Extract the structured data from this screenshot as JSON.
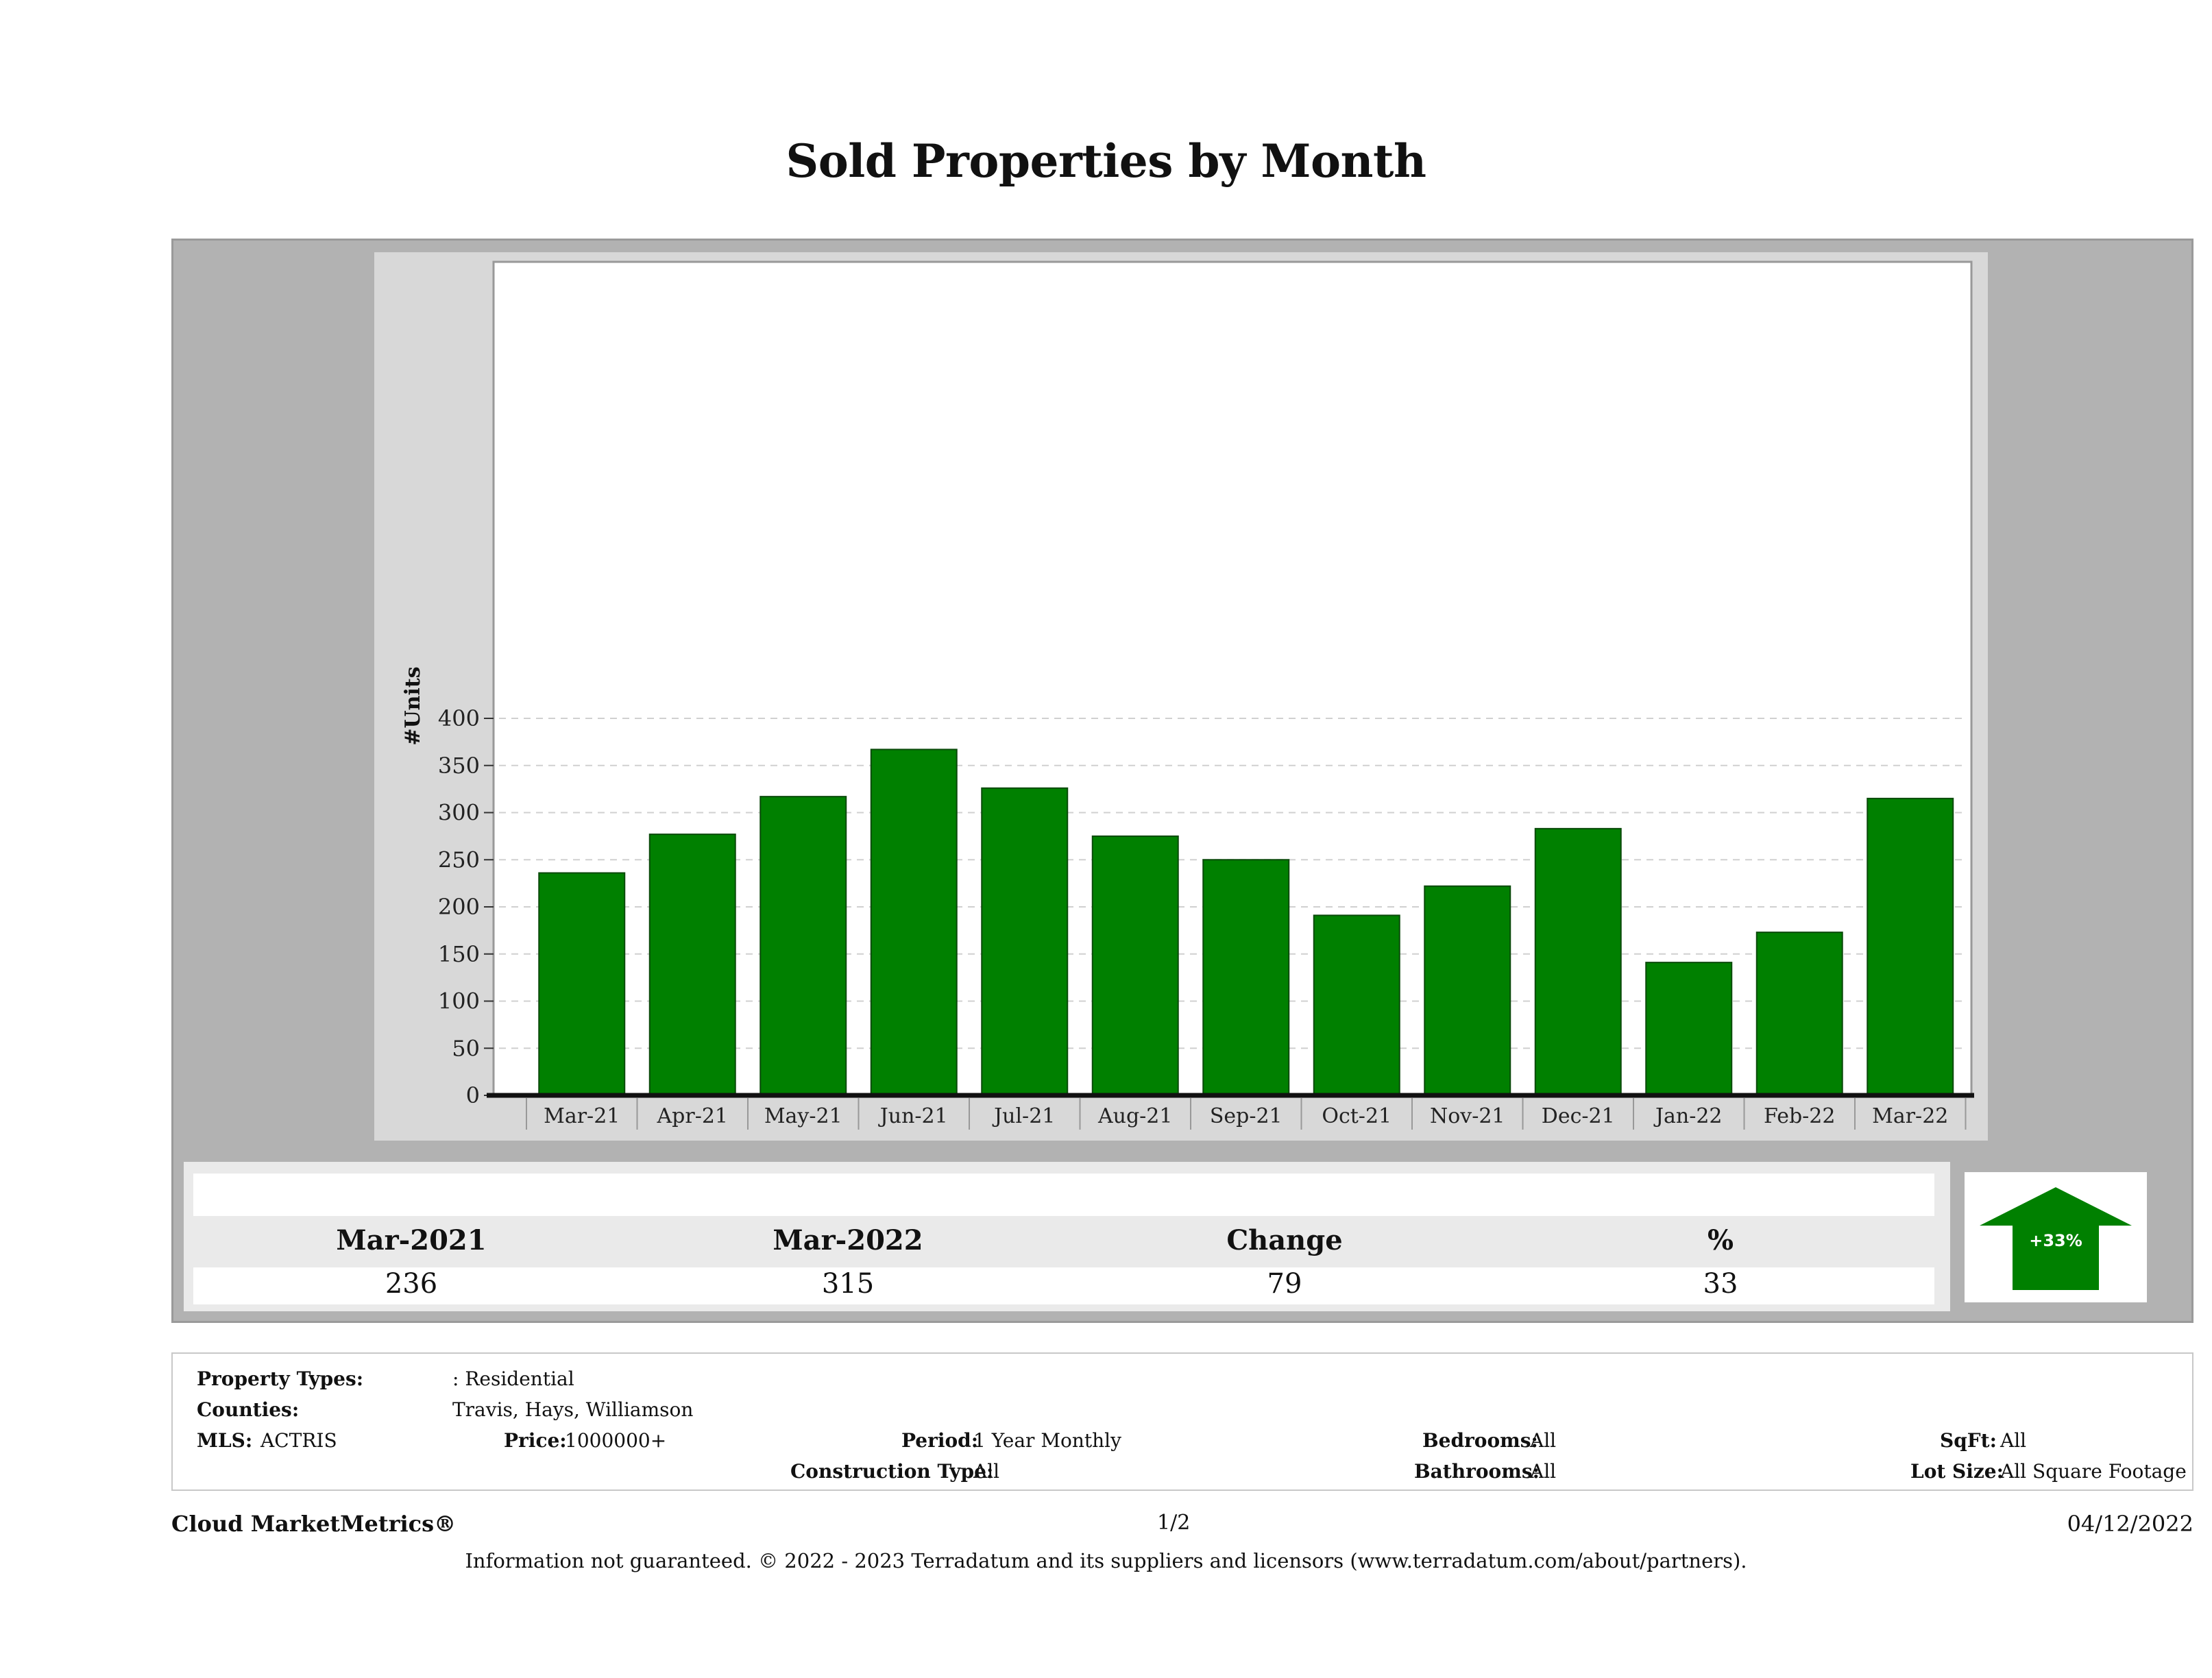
{
  "title": "Sold Properties by Month",
  "chart_data": {
    "type": "bar",
    "title": "Sold Properties by Month",
    "ylabel": "#Units",
    "xlabel": "",
    "categories": [
      "Mar-21",
      "Apr-21",
      "May-21",
      "Jun-21",
      "Jul-21",
      "Aug-21",
      "Sep-21",
      "Oct-21",
      "Nov-21",
      "Dec-21",
      "Jan-22",
      "Feb-22",
      "Mar-22"
    ],
    "values": [
      236,
      277,
      317,
      367,
      326,
      275,
      250,
      191,
      222,
      283,
      141,
      173,
      315
    ],
    "ylim": [
      0,
      430
    ],
    "yticks": [
      0,
      50,
      100,
      150,
      200,
      250,
      300,
      350,
      400
    ],
    "grid": true,
    "bar_color": "#008000"
  },
  "summary": {
    "headers": [
      "Mar-2021",
      "Mar-2022",
      "Change",
      "%"
    ],
    "values": [
      "236",
      "315",
      "79",
      "33"
    ],
    "badge": "+33%",
    "badge_color": "#008000"
  },
  "filters": {
    "property_types_label": "Property Types:",
    "property_types_value": ": Residential",
    "counties_label": "Counties:",
    "counties_value": "Travis, Hays, Williamson",
    "mls_label": "MLS:",
    "mls_value": "ACTRIS",
    "price_label": "Price:",
    "price_value": "1000000+",
    "period_label": "Period:",
    "period_value": "1 Year Monthly",
    "construction_label": "Construction Type:",
    "construction_value": "All",
    "bedrooms_label": "Bedrooms:",
    "bedrooms_value": "All",
    "bathrooms_label": "Bathrooms:",
    "bathrooms_value": "All",
    "sqft_label": "SqFt:",
    "sqft_value": "All",
    "lotsize_label": "Lot Size:",
    "lotsize_value": "All Square Footage"
  },
  "footer": {
    "brand": "Cloud MarketMetrics®",
    "page": "1/2",
    "date": "04/12/2022",
    "disclaimer": "Information not guaranteed. © 2022 - 2023 Terradatum and its suppliers and licensors (www.terradatum.com/about/partners)."
  }
}
